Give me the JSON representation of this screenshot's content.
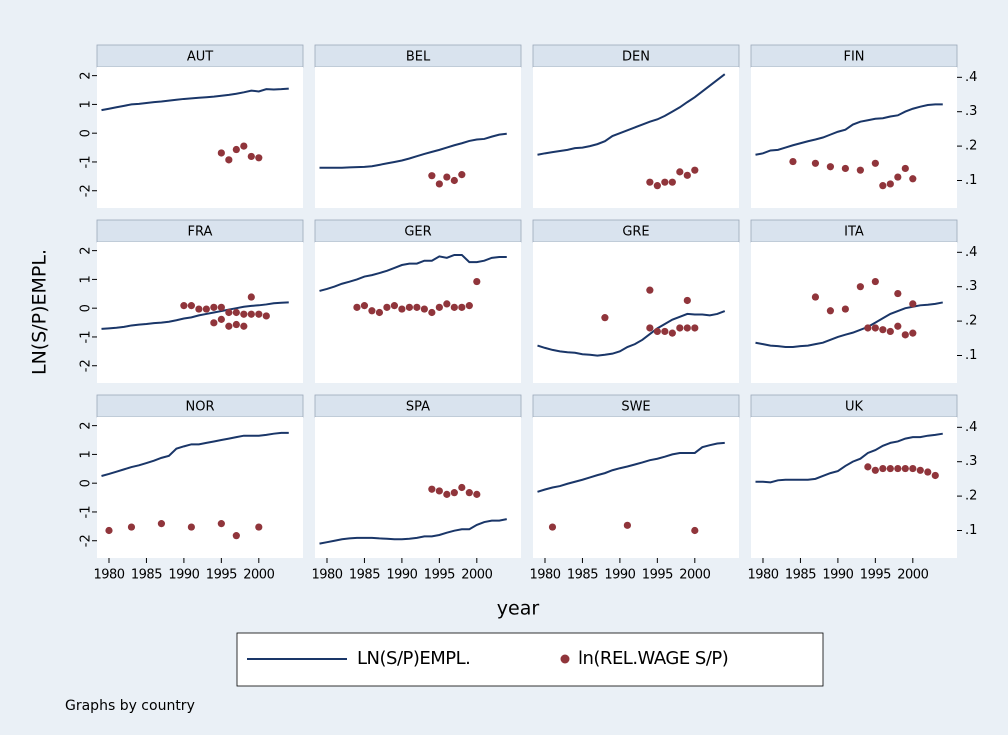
{
  "chart_data": {
    "type": "line",
    "ylabel": "LN(S/P)EMPL.",
    "xlabel": "year",
    "note": "Graphs by country",
    "xlim": [
      1978.4,
      2005.9
    ],
    "xticks": [
      1980,
      1985,
      1990,
      1995,
      2000
    ],
    "ylim": [
      -2.6,
      2.3
    ],
    "yticks": [
      2,
      1,
      0,
      -1,
      -2
    ],
    "y2lim": [
      0.02,
      0.43
    ],
    "y2ticks": [
      {
        "value": 0.4,
        "label": ".4"
      },
      {
        "value": 0.3,
        "label": ".3"
      },
      {
        "value": 0.2,
        "label": ".2"
      },
      {
        "value": 0.1,
        "label": ".1"
      }
    ],
    "series": [
      {
        "name": "LN(S/P)EMPL.",
        "color": "#1a3668",
        "type": "line"
      },
      {
        "name": "ln(REL.WAGE S/P)",
        "color": "#90353b",
        "type": "scatter",
        "axis": "y2"
      }
    ],
    "x": [
      1979,
      1980,
      1981,
      1982,
      1983,
      1984,
      1985,
      1986,
      1987,
      1988,
      1989,
      1990,
      1991,
      1992,
      1993,
      1994,
      1995,
      1996,
      1997,
      1998,
      1999,
      2000,
      2001,
      2002,
      2003,
      2004
    ],
    "panels": [
      {
        "title": "AUT",
        "line": [
          0.8,
          0.85,
          0.9,
          0.95,
          1.0,
          1.02,
          1.05,
          1.08,
          1.1,
          1.13,
          1.16,
          1.19,
          1.21,
          1.23,
          1.25,
          1.27,
          1.3,
          1.33,
          1.37,
          1.42,
          1.48,
          1.45,
          1.53,
          1.52,
          1.53,
          1.55
        ],
        "scatter_x": [
          1995,
          1996,
          1997,
          1998,
          1999,
          2000
        ],
        "scatter": [
          0.18,
          0.16,
          0.19,
          0.2,
          0.17,
          0.166
        ]
      },
      {
        "title": "BEL",
        "line": [
          -1.2,
          -1.2,
          -1.2,
          -1.2,
          -1.19,
          -1.18,
          -1.17,
          -1.15,
          -1.1,
          -1.05,
          -1.0,
          -0.95,
          -0.88,
          -0.8,
          -0.72,
          -0.65,
          -0.58,
          -0.5,
          -0.42,
          -0.35,
          -0.27,
          -0.22,
          -0.2,
          -0.12,
          -0.05,
          -0.02
        ],
        "scatter_x": [
          1994,
          1995,
          1996,
          1997,
          1998
        ],
        "scatter": [
          0.114,
          0.09,
          0.11,
          0.1,
          0.117
        ]
      },
      {
        "title": "DEN",
        "line": [
          -0.75,
          -0.7,
          -0.66,
          -0.62,
          -0.58,
          -0.52,
          -0.5,
          -0.45,
          -0.38,
          -0.28,
          -0.1,
          0.0,
          0.1,
          0.2,
          0.3,
          0.4,
          0.48,
          0.6,
          0.75,
          0.9,
          1.08,
          1.25,
          1.45,
          1.65,
          1.85,
          2.05
        ],
        "scatter_x": [
          1994,
          1995,
          1996,
          1997,
          1998,
          1999,
          2000
        ],
        "scatter": [
          0.095,
          0.085,
          0.095,
          0.095,
          0.125,
          0.115,
          0.13
        ]
      },
      {
        "title": "FIN",
        "line": [
          -0.75,
          -0.7,
          -0.6,
          -0.58,
          -0.5,
          -0.42,
          -0.35,
          -0.28,
          -0.22,
          -0.15,
          -0.05,
          0.05,
          0.12,
          0.3,
          0.4,
          0.45,
          0.5,
          0.52,
          0.58,
          0.62,
          0.75,
          0.85,
          0.92,
          0.98,
          1.0,
          1.0
        ],
        "scatter_x": [
          1984,
          1987,
          1989,
          1991,
          1993,
          1995,
          1996,
          1997,
          1998,
          1999,
          2000
        ],
        "scatter": [
          0.155,
          0.15,
          0.14,
          0.135,
          0.13,
          0.15,
          0.085,
          0.09,
          0.11,
          0.135,
          0.105
        ]
      },
      {
        "title": "FRA",
        "line": [
          -0.72,
          -0.7,
          -0.68,
          -0.65,
          -0.6,
          -0.57,
          -0.55,
          -0.52,
          -0.5,
          -0.47,
          -0.42,
          -0.36,
          -0.32,
          -0.25,
          -0.2,
          -0.15,
          -0.1,
          -0.05,
          0.0,
          0.05,
          0.08,
          0.1,
          0.13,
          0.17,
          0.19,
          0.2
        ],
        "scatter_x": [
          1990,
          1991,
          1992,
          1993,
          1994,
          1995,
          1995,
          1996,
          1997,
          1998,
          1999,
          2000,
          2001,
          1994,
          1996,
          1997,
          1998,
          1999
        ],
        "scatter": [
          0.245,
          0.245,
          0.235,
          0.235,
          0.24,
          0.24,
          0.205,
          0.225,
          0.225,
          0.22,
          0.22,
          0.22,
          0.215,
          0.195,
          0.185,
          0.19,
          0.185,
          0.27
        ]
      },
      {
        "title": "GER",
        "line": [
          0.6,
          0.67,
          0.75,
          0.85,
          0.92,
          1.0,
          1.1,
          1.15,
          1.22,
          1.3,
          1.4,
          1.5,
          1.55,
          1.55,
          1.65,
          1.65,
          1.8,
          1.75,
          1.85,
          1.85,
          1.6,
          1.6,
          1.65,
          1.75,
          1.78,
          1.78
        ],
        "scatter_x": [
          1984,
          1985,
          1986,
          1987,
          1988,
          1989,
          1990,
          1991,
          1992,
          1993,
          1994,
          1995,
          1996,
          1997,
          1998,
          1999,
          2000
        ],
        "scatter": [
          0.24,
          0.245,
          0.23,
          0.225,
          0.24,
          0.245,
          0.235,
          0.24,
          0.24,
          0.235,
          0.225,
          0.24,
          0.25,
          0.24,
          0.24,
          0.245,
          0.315
        ]
      },
      {
        "title": "GRE",
        "line": [
          -1.3,
          -1.38,
          -1.45,
          -1.5,
          -1.53,
          -1.55,
          -1.6,
          -1.62,
          -1.65,
          -1.62,
          -1.58,
          -1.5,
          -1.35,
          -1.25,
          -1.1,
          -0.9,
          -0.7,
          -0.55,
          -0.4,
          -0.3,
          -0.2,
          -0.22,
          -0.22,
          -0.25,
          -0.2,
          -0.1
        ],
        "scatter_x": [
          1988,
          1994,
          1994,
          1995,
          1996,
          1997,
          1998,
          1999,
          1999,
          2000
        ],
        "scatter": [
          0.21,
          0.29,
          0.18,
          0.17,
          0.17,
          0.165,
          0.18,
          0.18,
          0.26,
          0.18
        ]
      },
      {
        "title": "ITA",
        "line": [
          -1.2,
          -1.25,
          -1.3,
          -1.32,
          -1.35,
          -1.35,
          -1.32,
          -1.3,
          -1.25,
          -1.2,
          -1.1,
          -1.0,
          -0.92,
          -0.85,
          -0.75,
          -0.65,
          -0.5,
          -0.35,
          -0.2,
          -0.1,
          0.0,
          0.05,
          0.1,
          0.12,
          0.15,
          0.2
        ],
        "scatter_x": [
          1987,
          1989,
          1991,
          1993,
          1994,
          1995,
          1995,
          1996,
          1997,
          1998,
          1998,
          1999,
          2000,
          2000
        ],
        "scatter": [
          0.27,
          0.23,
          0.235,
          0.3,
          0.18,
          0.315,
          0.18,
          0.175,
          0.17,
          0.28,
          0.185,
          0.16,
          0.25,
          0.165
        ]
      },
      {
        "title": "NOR",
        "line": [
          0.25,
          0.32,
          0.4,
          0.48,
          0.56,
          0.62,
          0.7,
          0.78,
          0.88,
          0.95,
          1.2,
          1.28,
          1.35,
          1.35,
          1.4,
          1.45,
          1.5,
          1.55,
          1.6,
          1.65,
          1.65,
          1.65,
          1.68,
          1.72,
          1.75,
          1.75
        ],
        "scatter_x": [
          1980,
          1983,
          1987,
          1991,
          1995,
          1997,
          2000
        ],
        "scatter": [
          0.1,
          0.11,
          0.12,
          0.11,
          0.12,
          0.085,
          0.11
        ]
      },
      {
        "title": "SPA",
        "line": [
          -2.1,
          -2.05,
          -2.0,
          -1.95,
          -1.92,
          -1.9,
          -1.9,
          -1.9,
          -1.92,
          -1.93,
          -1.95,
          -1.95,
          -1.93,
          -1.9,
          -1.85,
          -1.85,
          -1.8,
          -1.72,
          -1.65,
          -1.6,
          -1.6,
          -1.45,
          -1.35,
          -1.3,
          -1.3,
          -1.25
        ],
        "scatter_x": [
          1994,
          1995,
          1996,
          1997,
          1998,
          1999,
          2000
        ],
        "scatter": [
          0.22,
          0.215,
          0.205,
          0.21,
          0.225,
          0.21,
          0.205
        ]
      },
      {
        "title": "SWE",
        "line": [
          -0.3,
          -0.22,
          -0.15,
          -0.1,
          -0.02,
          0.05,
          0.12,
          0.2,
          0.28,
          0.35,
          0.45,
          0.52,
          0.58,
          0.65,
          0.72,
          0.8,
          0.85,
          0.92,
          1.0,
          1.05,
          1.05,
          1.05,
          1.25,
          1.32,
          1.38,
          1.4
        ],
        "scatter_x": [
          1981,
          1991,
          2000
        ],
        "scatter": [
          0.11,
          0.115,
          0.1
        ]
      },
      {
        "title": "UK",
        "line": [
          0.05,
          0.05,
          0.03,
          0.1,
          0.12,
          0.12,
          0.12,
          0.12,
          0.15,
          0.25,
          0.35,
          0.42,
          0.6,
          0.75,
          0.85,
          1.05,
          1.15,
          1.3,
          1.4,
          1.45,
          1.55,
          1.6,
          1.6,
          1.65,
          1.68,
          1.72
        ],
        "scatter_x": [
          1994,
          1995,
          1996,
          1997,
          1998,
          1999,
          2000,
          2001,
          2002,
          2003
        ],
        "scatter": [
          0.285,
          0.275,
          0.28,
          0.28,
          0.28,
          0.28,
          0.28,
          0.275,
          0.27,
          0.26
        ]
      }
    ]
  }
}
